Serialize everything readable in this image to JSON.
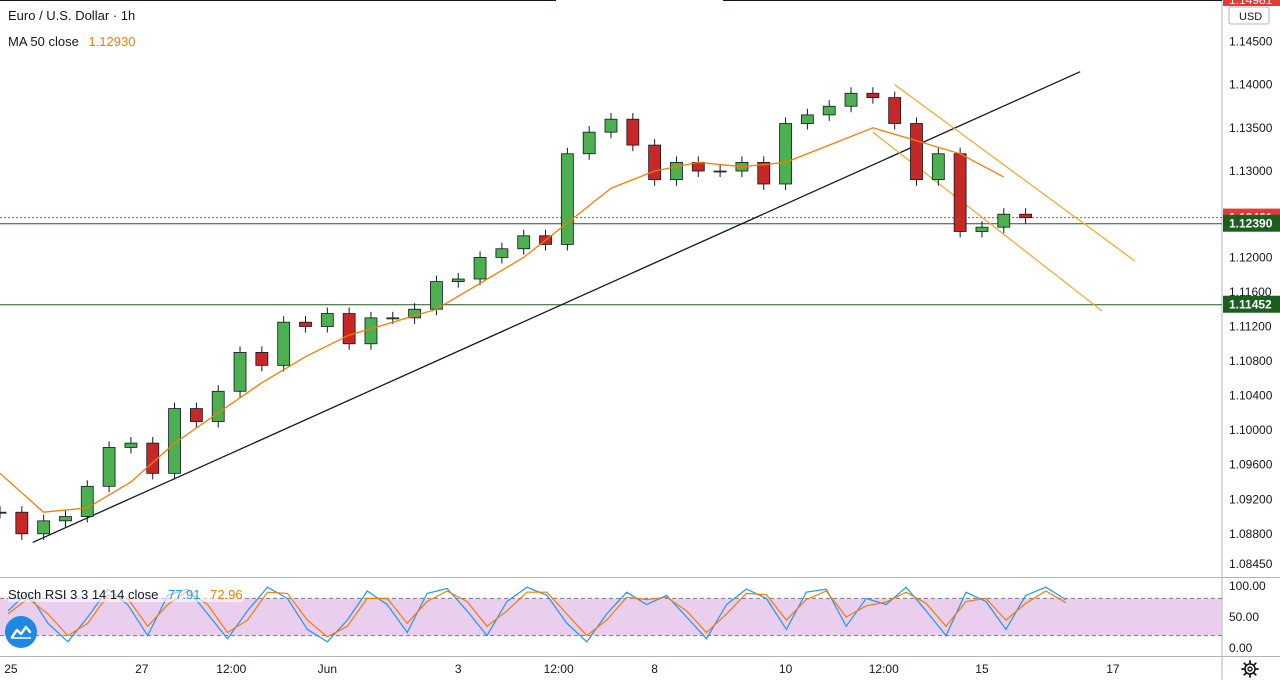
{
  "symbol": {
    "name": "Euro / U.S. Dollar",
    "separator": "·",
    "interval": "1h"
  },
  "ma_legend": {
    "label": "MA 50 close",
    "value": "1.12930",
    "color": "#f57c00"
  },
  "stoch_legend": {
    "label": "Stoch RSI 3 3 14 14 close",
    "k_value": "77.91",
    "d_value": "72.96",
    "k_color": "#2196f3",
    "d_color": "#f57c00"
  },
  "currency": "USD",
  "price_axis": {
    "top_cut_label": "1.14981",
    "ticks": [
      "1.14500",
      "1.14000",
      "1.13500",
      "1.13000",
      "1.12000",
      "1.11600",
      "1.11200",
      "1.10800",
      "1.10400",
      "1.10000",
      "1.09600",
      "1.09200",
      "1.08800",
      "1.08450"
    ]
  },
  "price_tags": [
    {
      "value": 1.12461,
      "label": "1.12461",
      "color": "#e53935"
    },
    {
      "value": 1.1239,
      "label": "1.12390",
      "color": "#1b5e20"
    },
    {
      "value": 1.11452,
      "label": "1.11452",
      "color": "#1b5e20"
    }
  ],
  "stoch_axis": {
    "ticks": [
      "100.00",
      "50.00",
      "0.00"
    ]
  },
  "time_axis": {
    "labels": [
      {
        "t": 0.5,
        "label": "25"
      },
      {
        "t": 6.5,
        "label": "27"
      },
      {
        "t": 10.6,
        "label": "12:00"
      },
      {
        "t": 15.0,
        "label": "Jun"
      },
      {
        "t": 21.0,
        "label": "3"
      },
      {
        "t": 25.6,
        "label": "12:00"
      },
      {
        "t": 30.0,
        "label": "8"
      },
      {
        "t": 36.0,
        "label": "10"
      },
      {
        "t": 40.5,
        "label": "12:00"
      },
      {
        "t": 45.0,
        "label": "15"
      },
      {
        "t": 51.0,
        "label": "17"
      }
    ]
  },
  "chart_data": [
    {
      "type": "line",
      "title": "Euro / U.S. Dollar · 1h",
      "ylim": [
        1.083,
        1.1498
      ],
      "xlim": [
        0,
        56
      ],
      "x_unit": "trading-hour index (hours × 0.0435)",
      "series": [
        {
          "name": "EUR/USD",
          "x": [
            0,
            1,
            2,
            3,
            4,
            5,
            6,
            7,
            8,
            9,
            10,
            11,
            12,
            13,
            14,
            15,
            16,
            17,
            18,
            19,
            20,
            21,
            22,
            23,
            24,
            25,
            26,
            27,
            28,
            29,
            30,
            31,
            32,
            33,
            34,
            35,
            36,
            37,
            38,
            39,
            40,
            41,
            42,
            43,
            44,
            45,
            46,
            47
          ],
          "values": [
            1.0905,
            1.088,
            1.0895,
            1.09,
            1.0935,
            1.098,
            1.0985,
            1.095,
            1.1025,
            1.101,
            1.1045,
            1.109,
            1.1075,
            1.1125,
            1.112,
            1.1135,
            1.11,
            1.113,
            1.113,
            1.114,
            1.1172,
            1.1175,
            1.12,
            1.121,
            1.1225,
            1.1215,
            1.132,
            1.1345,
            1.136,
            1.133,
            1.129,
            1.131,
            1.13,
            1.13,
            1.131,
            1.1285,
            1.1355,
            1.1365,
            1.1375,
            1.139,
            1.1385,
            1.1355,
            1.129,
            1.132,
            1.123,
            1.1235,
            1.125,
            1.1246
          ]
        },
        {
          "name": "MA 50 close",
          "x": [
            0,
            2,
            4,
            6,
            8,
            10,
            12,
            14,
            16,
            18,
            20,
            22,
            24,
            26,
            28,
            30,
            32,
            34,
            36,
            38,
            40,
            42,
            44,
            46
          ],
          "values": [
            1.095,
            1.0905,
            1.091,
            1.094,
            1.0985,
            1.102,
            1.1055,
            1.1085,
            1.111,
            1.1125,
            1.114,
            1.117,
            1.12,
            1.124,
            1.128,
            1.13,
            1.131,
            1.1305,
            1.131,
            1.133,
            1.135,
            1.1335,
            1.132,
            1.1293
          ]
        }
      ],
      "lines": [
        {
          "name": "trendline",
          "x": [
            1.5,
            49.5
          ],
          "values": [
            1.087,
            1.1415
          ]
        },
        {
          "name": "channel-upper",
          "x": [
            41.0,
            52.0
          ],
          "values": [
            1.14,
            1.1196
          ]
        },
        {
          "name": "channel-lower",
          "x": [
            40.0,
            50.5
          ],
          "values": [
            1.1345,
            1.1138
          ]
        },
        {
          "name": "hline-1",
          "value": 1.1239
        },
        {
          "name": "hline-2",
          "value": 1.11452
        },
        {
          "name": "last-price-line",
          "value": 1.12461
        }
      ]
    },
    {
      "type": "line",
      "title": "Stoch RSI 3 3 14 14 close",
      "ylim": [
        0,
        100
      ],
      "bands": [
        20,
        80
      ],
      "series": [
        {
          "name": "K",
          "values": [
            60,
            90,
            40,
            10,
            50,
            95,
            70,
            20,
            85,
            95,
            55,
            15,
            60,
            98,
            80,
            30,
            10,
            45,
            92,
            70,
            25,
            88,
            96,
            60,
            20,
            75,
            98,
            85,
            40,
            10,
            55,
            90,
            70,
            85,
            50,
            15,
            70,
            95,
            80,
            30,
            90,
            95,
            35,
            80,
            70,
            98,
            60,
            20,
            90,
            75,
            30,
            85,
            98,
            78
          ]
        },
        {
          "name": "D",
          "values": [
            55,
            80,
            55,
            20,
            40,
            85,
            80,
            35,
            70,
            92,
            70,
            25,
            45,
            90,
            88,
            45,
            18,
            35,
            80,
            80,
            40,
            75,
            92,
            75,
            35,
            60,
            90,
            90,
            55,
            20,
            45,
            82,
            78,
            82,
            60,
            25,
            55,
            88,
            86,
            45,
            78,
            92,
            50,
            68,
            74,
            90,
            72,
            35,
            75,
            80,
            45,
            72,
            92,
            73
          ]
        }
      ]
    }
  ]
}
